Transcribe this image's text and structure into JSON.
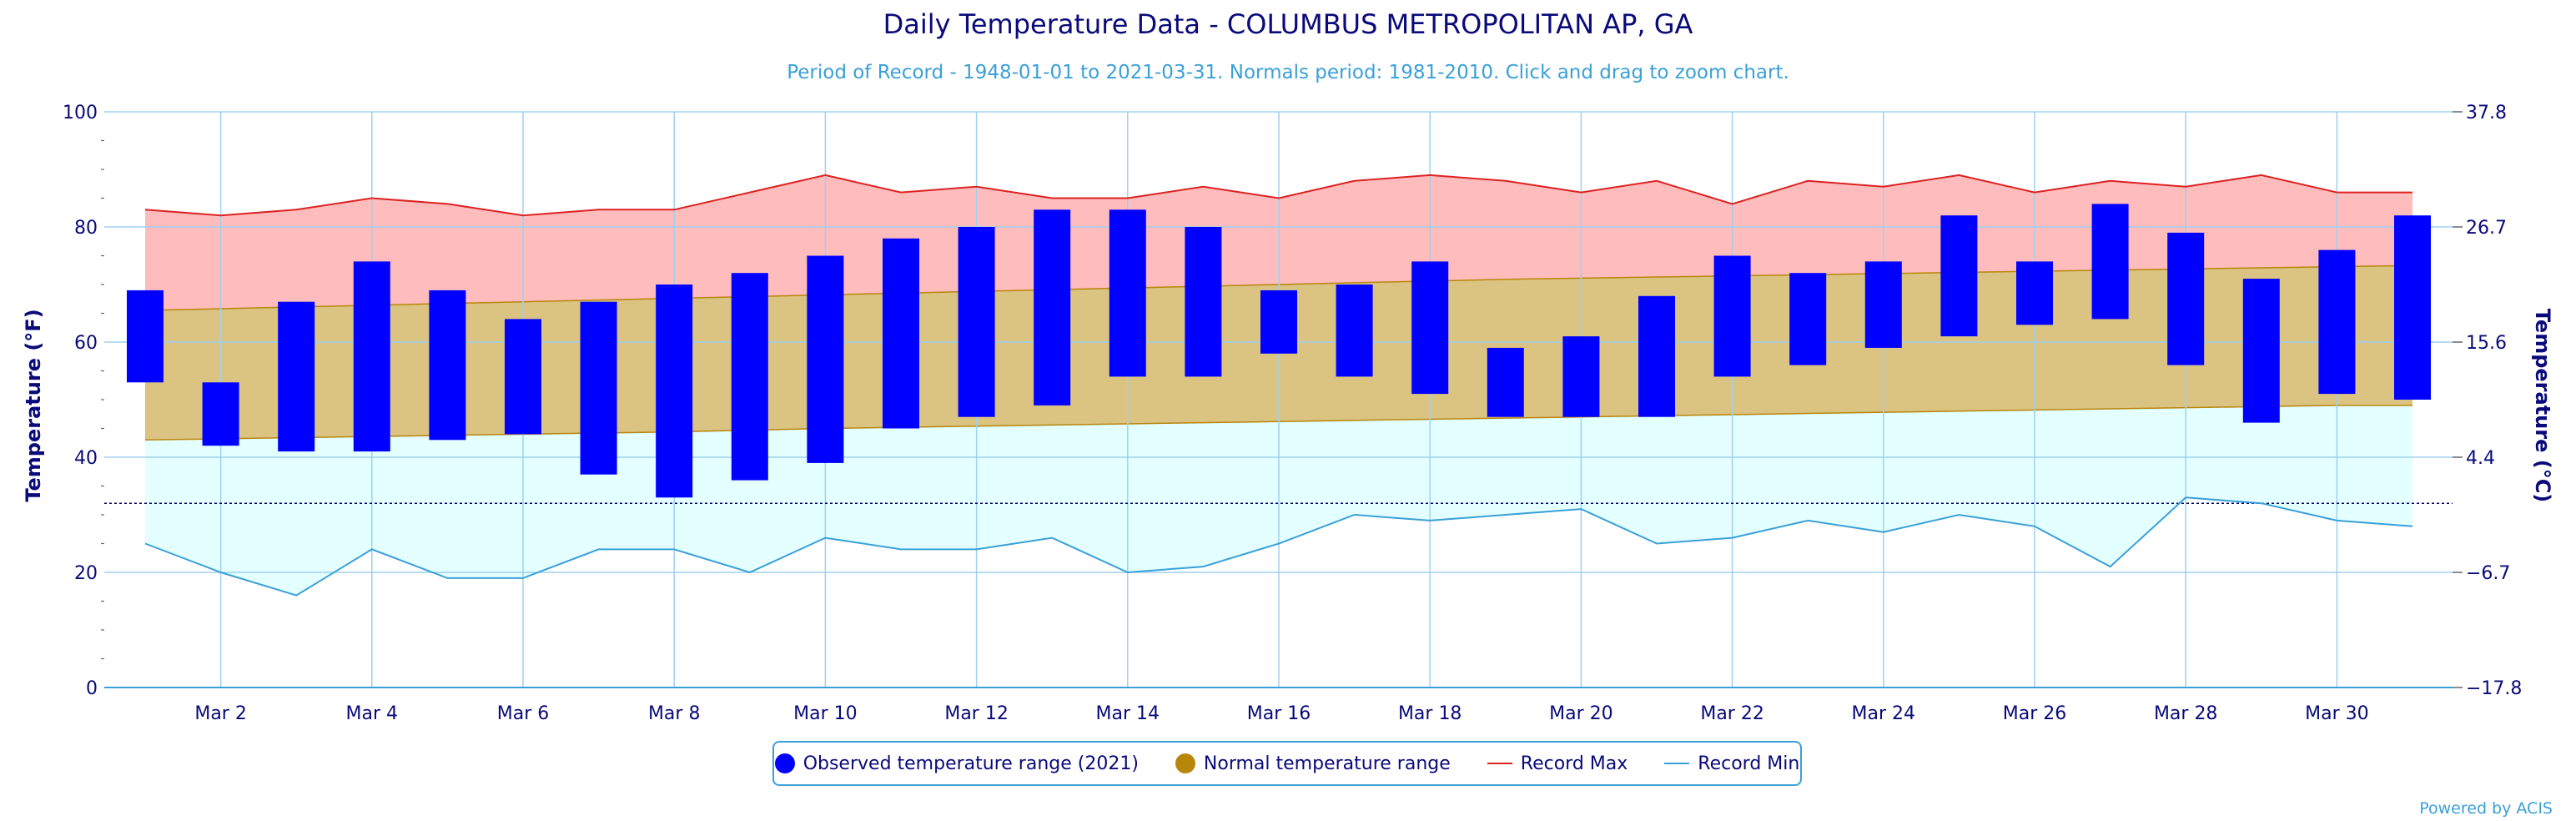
{
  "chart_data": {
    "type": "floating-bar+area+line",
    "title": "Daily Temperature Data - COLUMBUS METROPOLITAN AP, GA",
    "subtitle": "Period of Record - 1948-01-01 to 2021-03-31. Normals period: 1981-2010. Click and drag to zoom chart.",
    "ylabel": "Temperature (°F)",
    "ylabel_right": "Temperature (°C)",
    "ylim": [
      0,
      100
    ],
    "yticks": [
      "0",
      "20",
      "40",
      "60",
      "80",
      "100"
    ],
    "yticks_right": [
      "−17.8",
      "−6.7",
      "4.4",
      "15.6",
      "26.7",
      "37.8"
    ],
    "x": [
      1,
      2,
      3,
      4,
      5,
      6,
      7,
      8,
      9,
      10,
      11,
      12,
      13,
      14,
      15,
      16,
      17,
      18,
      19,
      20,
      21,
      22,
      23,
      24,
      25,
      26,
      27,
      28,
      29,
      30,
      31
    ],
    "xtick_labels": [
      "Mar 2",
      "Mar 4",
      "Mar 6",
      "Mar 8",
      "Mar 10",
      "Mar 12",
      "Mar 14",
      "Mar 16",
      "Mar 18",
      "Mar 20",
      "Mar 22",
      "Mar 24",
      "Mar 26",
      "Mar 28",
      "Mar 30"
    ],
    "freezing_line": 32,
    "observed": {
      "name": "Observed temperature range (2021)",
      "color": "#0000ff",
      "low": [
        53,
        42,
        41,
        41,
        43,
        44,
        37,
        33,
        36,
        39,
        45,
        47,
        49,
        54,
        54,
        58,
        54,
        51,
        47,
        47,
        47,
        54,
        56,
        59,
        61,
        63,
        64,
        56,
        46,
        51,
        50
      ],
      "high": [
        69,
        53,
        67,
        74,
        69,
        64,
        67,
        70,
        72,
        75,
        78,
        80,
        83,
        83,
        80,
        69,
        70,
        74,
        59,
        61,
        68,
        75,
        72,
        74,
        82,
        74,
        84,
        79,
        71,
        76,
        82
      ]
    },
    "normal": {
      "name": "Normal temperature range",
      "color": "#b8860b",
      "low": [
        43,
        43.2,
        43.4,
        43.6,
        43.8,
        44,
        44.2,
        44.4,
        44.7,
        45,
        45.2,
        45.4,
        45.6,
        45.8,
        46,
        46.2,
        46.4,
        46.6,
        46.8,
        47,
        47.2,
        47.4,
        47.6,
        47.8,
        48,
        48.2,
        48.4,
        48.6,
        48.8,
        49,
        49
      ],
      "high": [
        65.5,
        65.8,
        66.1,
        66.4,
        66.7,
        67,
        67.3,
        67.6,
        67.9,
        68.2,
        68.5,
        68.8,
        69.1,
        69.4,
        69.7,
        70,
        70.3,
        70.6,
        70.9,
        71.1,
        71.3,
        71.5,
        71.7,
        71.9,
        72.1,
        72.3,
        72.5,
        72.7,
        72.9,
        73.1,
        73.3
      ]
    },
    "record_max": {
      "name": "Record Max",
      "color": "#dd2222",
      "values": [
        83,
        82,
        83,
        85,
        84,
        82,
        83,
        83,
        86,
        89,
        86,
        87,
        85,
        85,
        87,
        85,
        88,
        89,
        88,
        86,
        88,
        84,
        88,
        87,
        89,
        86,
        88,
        87,
        89,
        86,
        86
      ]
    },
    "record_min": {
      "name": "Record Min",
      "color": "#3aa0d8",
      "values": [
        25,
        20,
        16,
        24,
        19,
        19,
        24,
        24,
        20,
        26,
        24,
        24,
        26,
        20,
        21,
        25,
        30,
        29,
        30,
        31,
        25,
        26,
        29,
        27,
        30,
        28,
        21,
        33,
        32,
        29,
        28
      ]
    },
    "credit": "Powered by ACIS"
  }
}
